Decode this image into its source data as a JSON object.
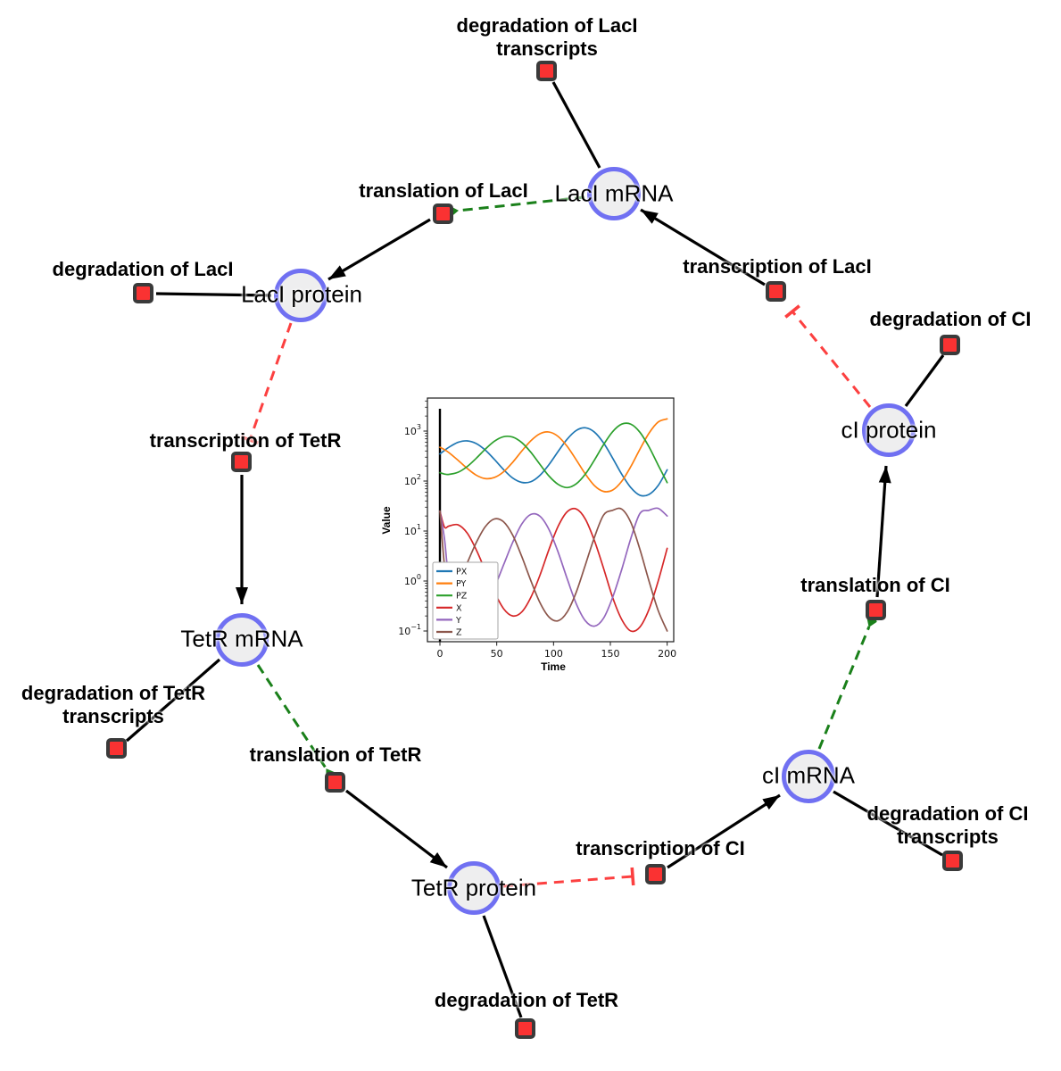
{
  "figure": {
    "background": "#ffffff"
  },
  "diagram": {
    "colors": {
      "species_fill": "#eeeeef",
      "species_border": "#7070f2",
      "reaction_fill": "#fa3232",
      "reaction_border": "#3a3a3a",
      "edge_solid": "#000000",
      "edge_catalysis": "#1a801a",
      "edge_inhibition": "#fc4040"
    },
    "species": [
      {
        "id": "laci-mrna",
        "label": "LacI mRNA"
      },
      {
        "id": "laci-protein",
        "label": "LacI protein"
      },
      {
        "id": "tetr-mrna",
        "label": "TetR mRNA"
      },
      {
        "id": "tetr-protein",
        "label": "TetR protein"
      },
      {
        "id": "ci-mrna",
        "label": "cI mRNA"
      },
      {
        "id": "ci-protein",
        "label": "cI protein"
      }
    ],
    "reactions": [
      {
        "id": "deg-laci-transcripts",
        "lines": [
          "degradation of LacI",
          "transcripts"
        ]
      },
      {
        "id": "translation-laci",
        "lines": [
          "translation of LacI"
        ]
      },
      {
        "id": "deg-laci",
        "lines": [
          "degradation of LacI"
        ]
      },
      {
        "id": "transcription-tetr",
        "lines": [
          "transcription of TetR"
        ]
      },
      {
        "id": "deg-tetr-transcripts",
        "lines": [
          "degradation of TetR",
          "transcripts"
        ]
      },
      {
        "id": "translation-tetr",
        "lines": [
          "translation of TetR"
        ]
      },
      {
        "id": "deg-tetr",
        "lines": [
          "degradation of TetR"
        ]
      },
      {
        "id": "transcription-ci",
        "lines": [
          "transcription of CI"
        ]
      },
      {
        "id": "deg-ci-transcripts",
        "lines": [
          "degradation of CI",
          "transcripts"
        ]
      },
      {
        "id": "translation-ci",
        "lines": [
          "translation of CI"
        ]
      },
      {
        "id": "deg-ci",
        "lines": [
          "degradation of CI"
        ]
      },
      {
        "id": "transcription-laci",
        "lines": [
          "transcription of LacI"
        ]
      }
    ],
    "edges": [
      {
        "from": "deg-laci-transcripts",
        "to": "laci-mrna",
        "type": "solid"
      },
      {
        "from": "transcription-laci",
        "to": "laci-mrna",
        "type": "solid-arrow"
      },
      {
        "from": "laci-mrna",
        "to": "translation-laci",
        "type": "catalysis-dashed-green"
      },
      {
        "from": "translation-laci",
        "to": "laci-protein",
        "type": "solid-arrow"
      },
      {
        "from": "deg-laci",
        "to": "laci-protein",
        "type": "solid"
      },
      {
        "from": "laci-protein",
        "to": "transcription-tetr",
        "type": "inhibition-dashed-red"
      },
      {
        "from": "transcription-tetr",
        "to": "tetr-mrna",
        "type": "solid-arrow"
      },
      {
        "from": "tetr-mrna",
        "to": "deg-tetr-transcripts",
        "type": "solid"
      },
      {
        "from": "tetr-mrna",
        "to": "translation-tetr",
        "type": "catalysis-dashed-green"
      },
      {
        "from": "translation-tetr",
        "to": "tetr-protein",
        "type": "solid-arrow"
      },
      {
        "from": "tetr-protein",
        "to": "deg-tetr",
        "type": "solid"
      },
      {
        "from": "tetr-protein",
        "to": "transcription-ci",
        "type": "inhibition-dashed-red"
      },
      {
        "from": "transcription-ci",
        "to": "ci-mrna",
        "type": "solid-arrow"
      },
      {
        "from": "ci-mrna",
        "to": "deg-ci-transcripts",
        "type": "solid"
      },
      {
        "from": "ci-mrna",
        "to": "translation-ci",
        "type": "catalysis-dashed-green"
      },
      {
        "from": "translation-ci",
        "to": "ci-protein",
        "type": "solid-arrow"
      },
      {
        "from": "ci-protein",
        "to": "deg-ci",
        "type": "solid"
      },
      {
        "from": "ci-protein",
        "to": "transcription-laci",
        "type": "inhibition-dashed-red"
      }
    ]
  },
  "chart_data": {
    "type": "line",
    "title": "",
    "xlabel": "Time",
    "ylabel": "Value",
    "x_ticks": [
      0,
      50,
      100,
      150,
      200
    ],
    "xlim": [
      0,
      200
    ],
    "y_scale": "log",
    "y_tick_exponents": [
      -1,
      0,
      1,
      2,
      3
    ],
    "ylim_log10": [
      -1.21,
      3.66
    ],
    "grid": false,
    "legend_position": "lower left",
    "initial_spike_at_x": 0,
    "t": [
      0,
      4,
      8,
      16,
      24,
      32,
      40,
      48,
      56,
      64,
      72,
      80,
      88,
      96,
      104,
      112,
      120,
      128,
      136,
      144,
      152,
      160,
      168,
      176,
      184,
      192,
      200
    ],
    "series": [
      {
        "name": "PX",
        "color": "#1f77b4",
        "values": [
          349,
          410,
          476,
          596,
          637,
          563,
          415,
          270,
          170,
          115,
          94,
          97,
          130,
          214,
          390,
          689,
          1028,
          1164,
          953,
          579,
          288,
          137,
          74,
          52,
          54,
          81,
          168
        ]
      },
      {
        "name": "PY",
        "color": "#ff7f0e",
        "values": [
          474,
          425,
          369,
          260,
          179,
          131,
          112,
          118,
          153,
          237,
          397,
          640,
          885,
          958,
          782,
          494,
          265,
          138,
          81,
          62,
          66,
          99,
          195,
          433,
          908,
          1514,
          1754
        ]
      },
      {
        "name": "PZ",
        "color": "#2ca02c",
        "values": [
          147,
          138,
          136,
          150,
          195,
          286,
          436,
          627,
          771,
          760,
          590,
          377,
          216,
          126,
          86,
          74,
          88,
          138,
          264,
          534,
          973,
          1377,
          1374,
          948,
          484,
          210,
          93
        ]
      },
      {
        "name": "X",
        "color": "#d62728",
        "values": [
          25,
          12,
          12.6,
          13.3,
          9.1,
          4.2,
          1.6,
          0.6,
          0.28,
          0.2,
          0.24,
          0.47,
          1.3,
          4.3,
          12.4,
          24.3,
          27.6,
          17.3,
          6.4,
          1.8,
          0.47,
          0.17,
          0.1,
          0.12,
          0.27,
          0.98,
          4.5
        ]
      },
      {
        "name": "Y",
        "color": "#9467bd",
        "values": [
          25,
          7,
          1.17,
          0.52,
          0.3,
          0.26,
          0.36,
          0.75,
          2.1,
          5.9,
          13.8,
          21.5,
          19.8,
          10.7,
          3.8,
          1.11,
          0.35,
          0.16,
          0.125,
          0.18,
          0.47,
          1.7,
          7.1,
          22.4,
          26,
          28.5,
          20
        ]
      },
      {
        "name": "Z",
        "color": "#8c564b",
        "values": [
          25,
          2,
          0.46,
          0.93,
          2.3,
          5.9,
          12.3,
          17.5,
          15.3,
          8.3,
          3.1,
          1.02,
          0.37,
          0.19,
          0.16,
          0.24,
          0.6,
          2.1,
          7.5,
          20.8,
          26,
          27.5,
          14.9,
          4.3,
          1.0,
          0.26,
          0.1
        ]
      }
    ]
  }
}
